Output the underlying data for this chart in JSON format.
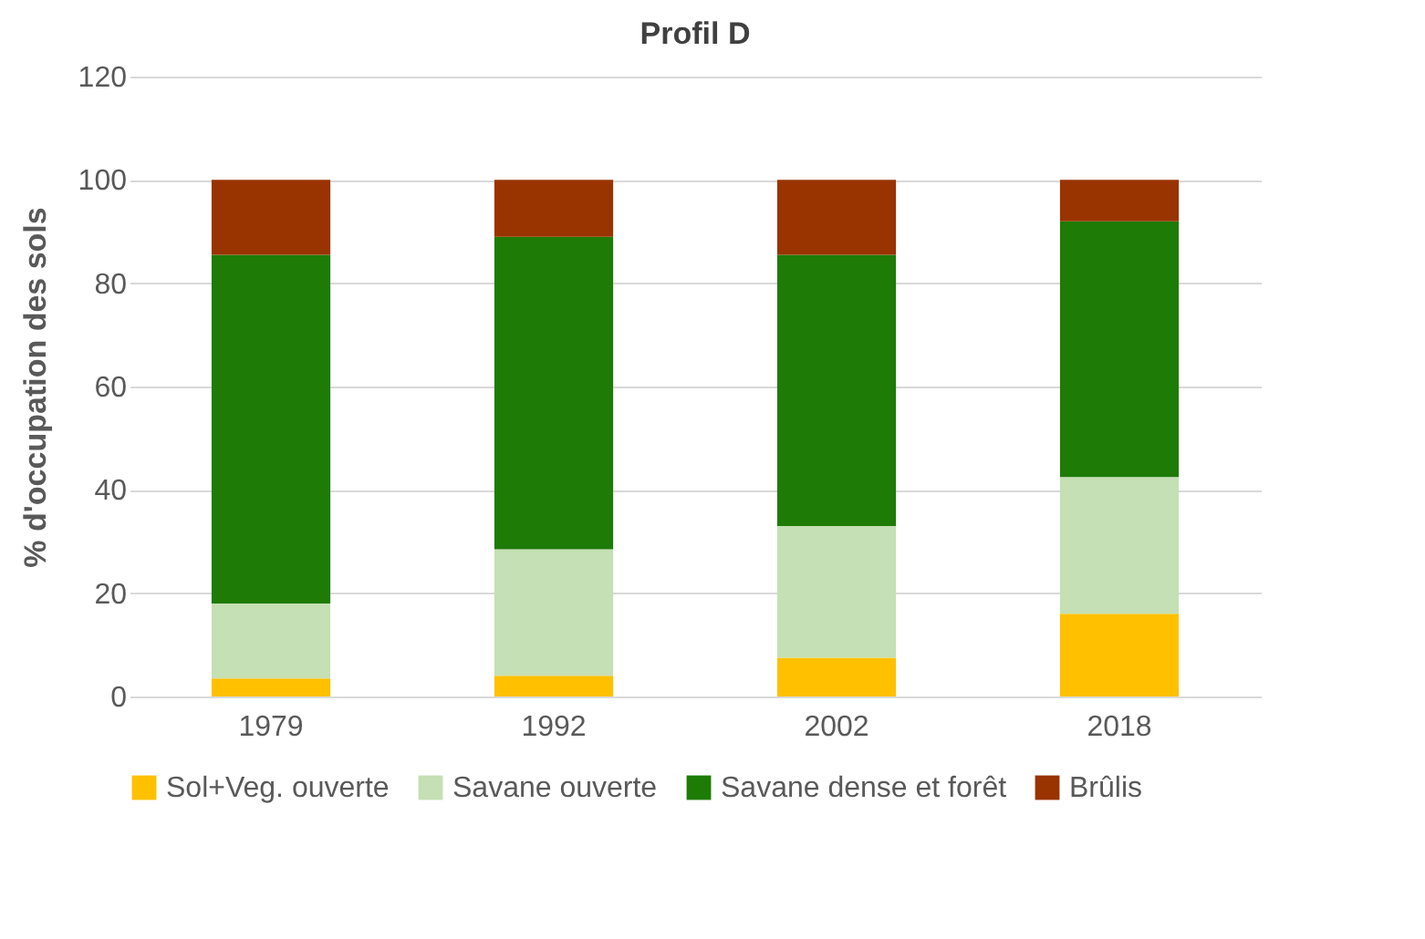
{
  "chart_data": {
    "type": "bar",
    "title": "Profil D",
    "ylabel": "% d'occupation des sols",
    "categories": [
      "1979",
      "1992",
      "2002",
      "2018"
    ],
    "stacked": true,
    "series": [
      {
        "name": "Sol+Veg. ouverte",
        "color": "#ffc000",
        "values": [
          3.5,
          4,
          7.5,
          16
        ]
      },
      {
        "name": "Savane ouverte",
        "color": "#c5e0b4",
        "values": [
          14.5,
          24.5,
          25.5,
          26.5
        ]
      },
      {
        "name": "Savane dense et forêt",
        "color": "#1e7b06",
        "values": [
          67.5,
          60.5,
          52.5,
          49.5
        ]
      },
      {
        "name": "Brûlis",
        "color": "#993300",
        "values": [
          14.5,
          11,
          14.5,
          8
        ]
      }
    ],
    "ylim": [
      0,
      120
    ],
    "yticks": [
      0,
      20,
      40,
      60,
      80,
      100,
      120
    ],
    "grid": "y",
    "legend": "bottom"
  }
}
